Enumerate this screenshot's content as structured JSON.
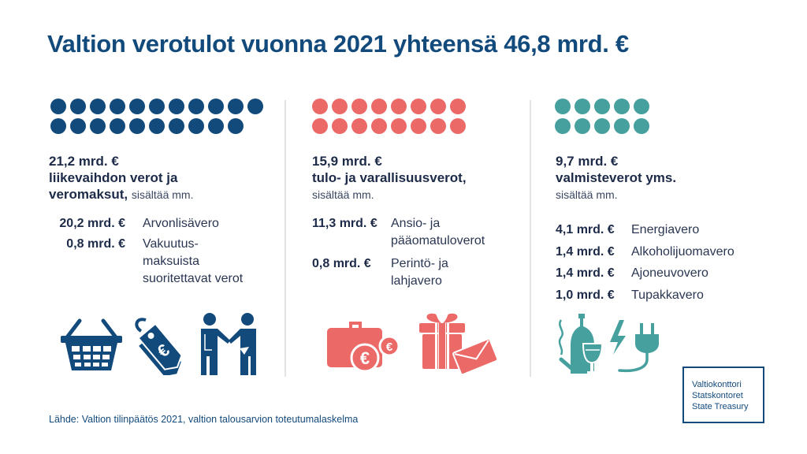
{
  "title": "Valtion verotulot vuonna 2021 yhteensä 46,8 mrd. €",
  "colors": {
    "title": "#134a7c",
    "column1": "#134a7c",
    "column2": "#eb6a68",
    "column3": "#45a09e",
    "divider": "#e3e3e3"
  },
  "columns": [
    {
      "dot_count": 21,
      "amount": "21,2 mrd. €",
      "category_line1": "liikevaihdon verot ja",
      "category_line2": "veromaksut,",
      "includes": "sisältää mm.",
      "items": [
        {
          "amount": "20,2 mrd. €",
          "label": "Arvonlisävero"
        },
        {
          "amount": "0,8 mrd. €",
          "label_lines": [
            "Vakuutus-",
            "maksuista",
            "suoritettavat verot"
          ]
        }
      ],
      "icons": [
        "shopping-basket-icon",
        "euro-price-tag-icon",
        "handshake-people-icon"
      ]
    },
    {
      "dot_count": 16,
      "amount": "15,9 mrd. €",
      "category": "tulo- ja varallisuusverot,",
      "includes": "sisältää mm.",
      "items": [
        {
          "amount": "11,3 mrd. €",
          "label_lines": [
            "Ansio- ja",
            "pääomatuloverot"
          ]
        },
        {
          "amount": "0,8 mrd. €",
          "label_lines": [
            "Perintö- ja",
            "lahjavero"
          ]
        }
      ],
      "icons": [
        "briefcase-euro-coins-icon",
        "gift-envelope-icon"
      ]
    },
    {
      "dot_count": 10,
      "amount": "9,7 mrd. €",
      "category": "valmisteverot yms.",
      "includes": "sisältää mm.",
      "items": [
        {
          "amount": "4,1 mrd. €",
          "label": "Energiavero"
        },
        {
          "amount": "1,4 mrd. €",
          "label": "Alkoholijuomavero"
        },
        {
          "amount": "1,4 mrd. €",
          "label": "Ajoneuvovero"
        },
        {
          "amount": "1,0 mrd. €",
          "label": "Tupakkavero"
        }
      ],
      "icons": [
        "cigarette-bottle-wine-icon",
        "electric-plug-icon"
      ]
    }
  ],
  "source": "Lähde: Valtion tilinpäätös 2021, valtion talousarvion toteutumalaskelma",
  "logo": {
    "line1": "Valtiokonttori",
    "line2": "Statskontoret",
    "line3": "State Treasury"
  }
}
